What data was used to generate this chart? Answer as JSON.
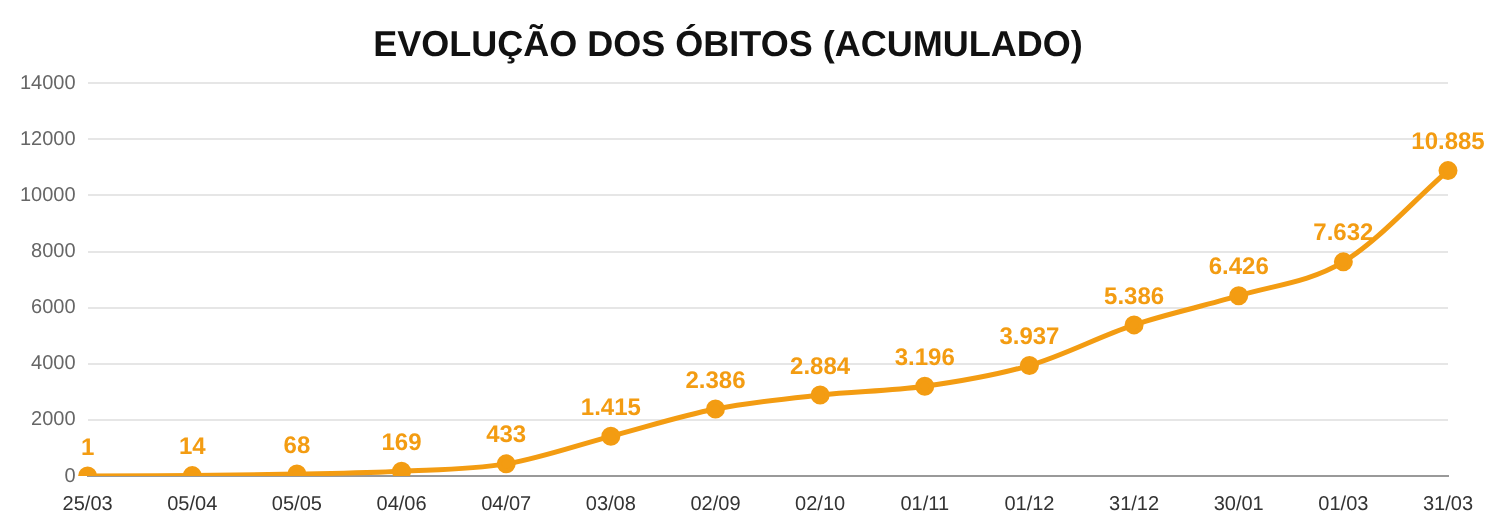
{
  "chart_data": {
    "type": "line",
    "title": "EVOLUÇÃO DOS ÓBITOS (ACUMULADO)",
    "categories": [
      "25/03",
      "05/04",
      "05/05",
      "04/06",
      "04/07",
      "03/08",
      "02/09",
      "02/10",
      "01/11",
      "01/12",
      "31/12",
      "30/01",
      "01/03",
      "31/03"
    ],
    "series": [
      {
        "color": "#f39c12",
        "values": [
          1,
          14,
          68,
          169,
          433,
          1415,
          2386,
          2884,
          3196,
          3937,
          5386,
          6426,
          7632,
          10885
        ],
        "value_labels": [
          "1",
          "14",
          "68",
          "169",
          "433",
          "1.415",
          "2.386",
          "2.884",
          "3.196",
          "3.937",
          "5.386",
          "6.426",
          "7.632",
          "10.885"
        ]
      }
    ],
    "ylim": [
      0,
      14000
    ],
    "yticks": [
      0,
      2000,
      4000,
      6000,
      8000,
      10000,
      12000,
      14000
    ],
    "grid": "y",
    "legend": false,
    "marker": "circle",
    "line_style": "solid"
  }
}
